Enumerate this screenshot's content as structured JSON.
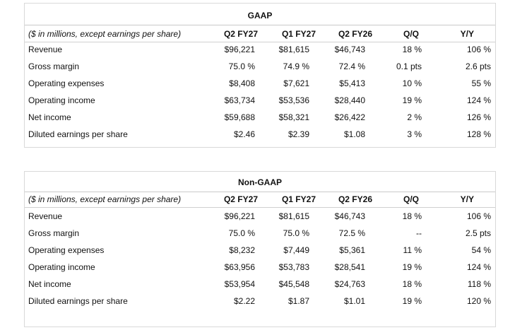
{
  "gaap": {
    "title": "GAAP",
    "headers": [
      "($ in millions, except earnings per share)",
      "Q2 FY27",
      "Q1 FY27",
      "Q2 FY26",
      "Q/Q",
      "Y/Y"
    ],
    "rows": [
      [
        "Revenue",
        "$96,221",
        "$81,615",
        "$46,743",
        "18 %",
        "106 %"
      ],
      [
        "Gross margin",
        "75.0 %",
        "74.9 %",
        "72.4 %",
        "0.1 pts",
        "2.6 pts"
      ],
      [
        "Operating expenses",
        "$8,408",
        "$7,621",
        "$5,413",
        "10 %",
        "55 %"
      ],
      [
        "Operating income",
        "$63,734",
        "$53,536",
        "$28,440",
        "19 %",
        "124 %"
      ],
      [
        "Net income",
        "$59,688",
        "$58,321",
        "$26,422",
        "2 %",
        "126 %"
      ],
      [
        "Diluted earnings per share",
        "$2.46",
        "$2.39",
        "$1.08",
        "3 %",
        "128 %"
      ]
    ]
  },
  "nongaap": {
    "title": "Non-GAAP",
    "headers": [
      "($ in millions, except earnings per share)",
      "Q2 FY27",
      "Q1 FY27",
      "Q2 FY26",
      "Q/Q",
      "Y/Y"
    ],
    "rows": [
      [
        "Revenue",
        "$96,221",
        "$81,615",
        "$46,743",
        "18 %",
        "106 %"
      ],
      [
        "Gross margin",
        "75.0 %",
        "75.0 %",
        "72.5 %",
        "--",
        "2.5 pts"
      ],
      [
        "Operating expenses",
        "$8,232",
        "$7,449",
        "$5,361",
        "11 %",
        "54 %"
      ],
      [
        "Operating income",
        "$63,956",
        "$53,783",
        "$28,541",
        "19 %",
        "124 %"
      ],
      [
        "Net income",
        "$53,954",
        "$45,548",
        "$24,763",
        "18 %",
        "118 %"
      ],
      [
        "Diluted earnings per share",
        "$2.22",
        "$1.87",
        "$1.01",
        "19 %",
        "120 %"
      ]
    ]
  }
}
